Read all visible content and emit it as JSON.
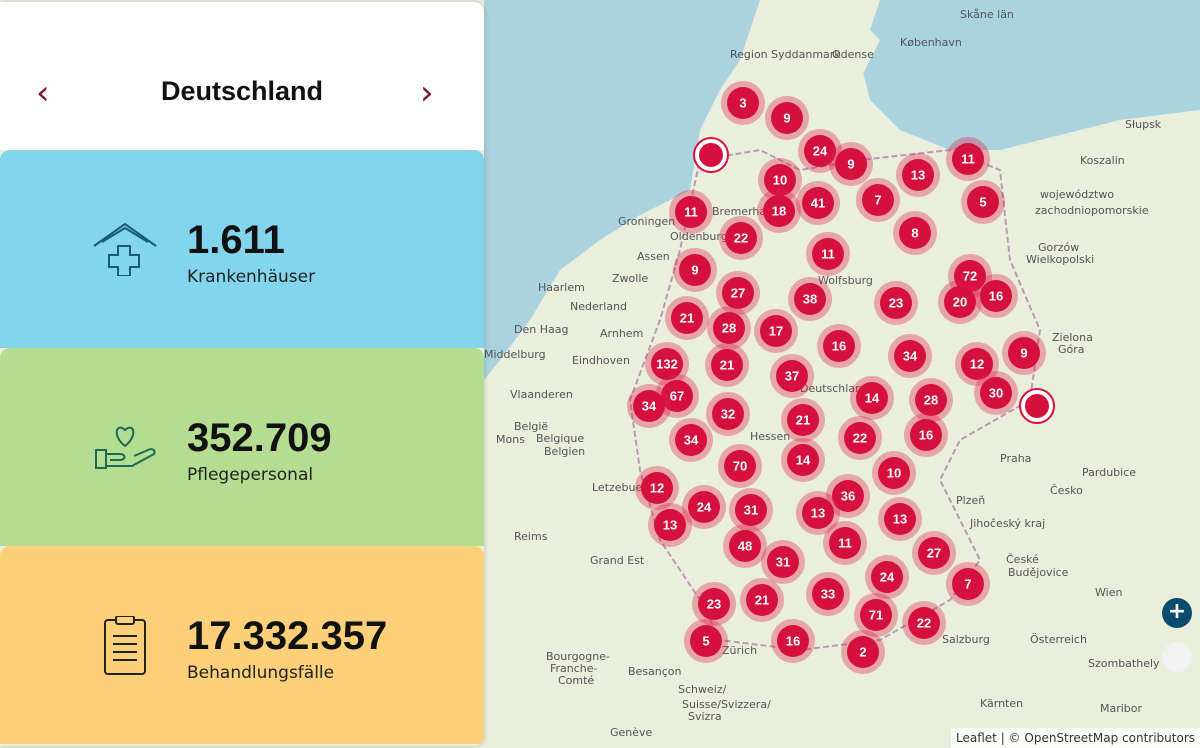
{
  "header": {
    "title": "Deutschland",
    "prev": "‹",
    "next": "›"
  },
  "stats": [
    {
      "value": "1.611",
      "label": "Krankenhäuser"
    },
    {
      "value": "352.709",
      "label": "Pflegepersonal"
    },
    {
      "value": "17.332.357",
      "label": "Behandlungsfälle"
    }
  ],
  "map": {
    "clusters": [
      3,
      9,
      24,
      9,
      11,
      10,
      13,
      18,
      41,
      7,
      5,
      11,
      22,
      8,
      11,
      9,
      72,
      27,
      38,
      23,
      20,
      16,
      21,
      28,
      17,
      16,
      34,
      12,
      9,
      132,
      21,
      37,
      67,
      34,
      30,
      14,
      28,
      32,
      21,
      34,
      22,
      16,
      70,
      14,
      10,
      12,
      36,
      24,
      31,
      13,
      13,
      13,
      11,
      48,
      27,
      31,
      24,
      7,
      33,
      23,
      21,
      71,
      22,
      5,
      16,
      2
    ],
    "places": [
      "Skåne län",
      "København",
      "Region Syddanmark",
      "Odense",
      "Słupsk",
      "Koszalin",
      "województwo",
      "zachodniopomorskie",
      "Groningen",
      "Bremerhaven",
      "Oldenburg",
      "Assen",
      "Zwolle",
      "Haarlem",
      "Nederland",
      "Den Haag",
      "Arnhem",
      "Middelburg",
      "Eindhoven",
      "Vlaanderen",
      "België",
      "Belgique",
      "Belgien",
      "Mons",
      "Letzebuerg",
      "Reims",
      "Grand Est",
      "Gorzów",
      "Wielkopolski",
      "Zielona",
      "Góra",
      "Praha",
      "Plzeň",
      "Česko",
      "Pardubice",
      "Jihočeský kraj",
      "České",
      "Budějovice",
      "Wien",
      "Österreich",
      "Salzburg",
      "Zürich",
      "Besançon",
      "Schweiz/",
      "Suisse/Svizzera/",
      "Svizra",
      "Bourgogne-",
      "Franche-",
      "Comté",
      "Szombathely",
      "Kärnten",
      "Genève",
      "Maribor",
      "Wolfsburg",
      "Hessen",
      "Deutschland"
    ],
    "zoom_in": "+",
    "attribution": "Leaflet | © OpenStreetMap contributors"
  }
}
